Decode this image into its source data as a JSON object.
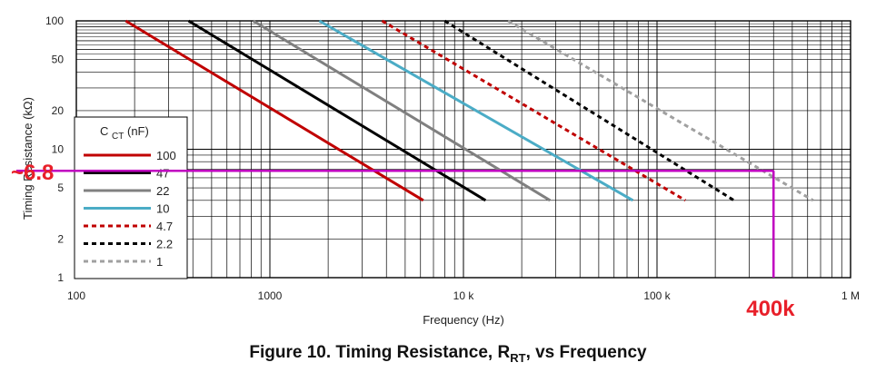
{
  "chart_data": {
    "type": "line",
    "title": "",
    "xlabel": "Frequency (Hz)",
    "ylabel": "Timing Resistance (kΩ)",
    "x_scale": "log",
    "y_scale": "log",
    "xlim": [
      100,
      1000000
    ],
    "ylim": [
      1,
      100
    ],
    "x_ticks": [
      "100",
      "1000",
      "10 k",
      "100 k",
      "1 M"
    ],
    "y_ticks": [
      {
        "value": 100,
        "label": "100"
      },
      {
        "value": 50,
        "label": "50"
      },
      {
        "value": 20,
        "label": "20"
      },
      {
        "value": 10,
        "label": "10"
      },
      {
        "value": 5,
        "label": "5"
      },
      {
        "value": 2,
        "label": "2"
      },
      {
        "value": 1,
        "label": "1"
      }
    ],
    "grid": true,
    "legend": {
      "title_main": "C",
      "title_sub": "CT",
      "title_rest": " (nF)",
      "placement": "lower-left"
    },
    "series": [
      {
        "name": "100",
        "color": "#c00000",
        "dash": "solid",
        "x": [
          180,
          6200
        ],
        "y": [
          100,
          4
        ]
      },
      {
        "name": "47",
        "color": "#000000",
        "dash": "solid",
        "x": [
          380,
          13000
        ],
        "y": [
          100,
          4
        ]
      },
      {
        "name": "22",
        "color": "#808080",
        "dash": "solid",
        "x": [
          820,
          28000
        ],
        "y": [
          100,
          4
        ]
      },
      {
        "name": "10",
        "color": "#4bacc6",
        "dash": "solid",
        "x": [
          1800,
          75000
        ],
        "y": [
          100,
          4
        ]
      },
      {
        "name": "4.7",
        "color": "#c00000",
        "dash": "dashed",
        "x": [
          3800,
          140000
        ],
        "y": [
          100,
          4
        ]
      },
      {
        "name": "2.2",
        "color": "#000000",
        "dash": "dashed",
        "x": [
          8000,
          250000
        ],
        "y": [
          100,
          4
        ]
      },
      {
        "name": "1",
        "color": "#a0a0a0",
        "dash": "dashed",
        "x": [
          17000,
          640000
        ],
        "y": [
          100,
          4
        ]
      }
    ],
    "annotations": {
      "color": "#c000c0",
      "text_color": "#e8202a",
      "point": {
        "x": 400000,
        "y": 6.8
      },
      "y_label": "~6.8",
      "x_label": "400k"
    }
  },
  "caption": {
    "prefix": "Figure 10.  Timing Resistance, R",
    "sub": "RT",
    "suffix": ", vs Frequency"
  }
}
